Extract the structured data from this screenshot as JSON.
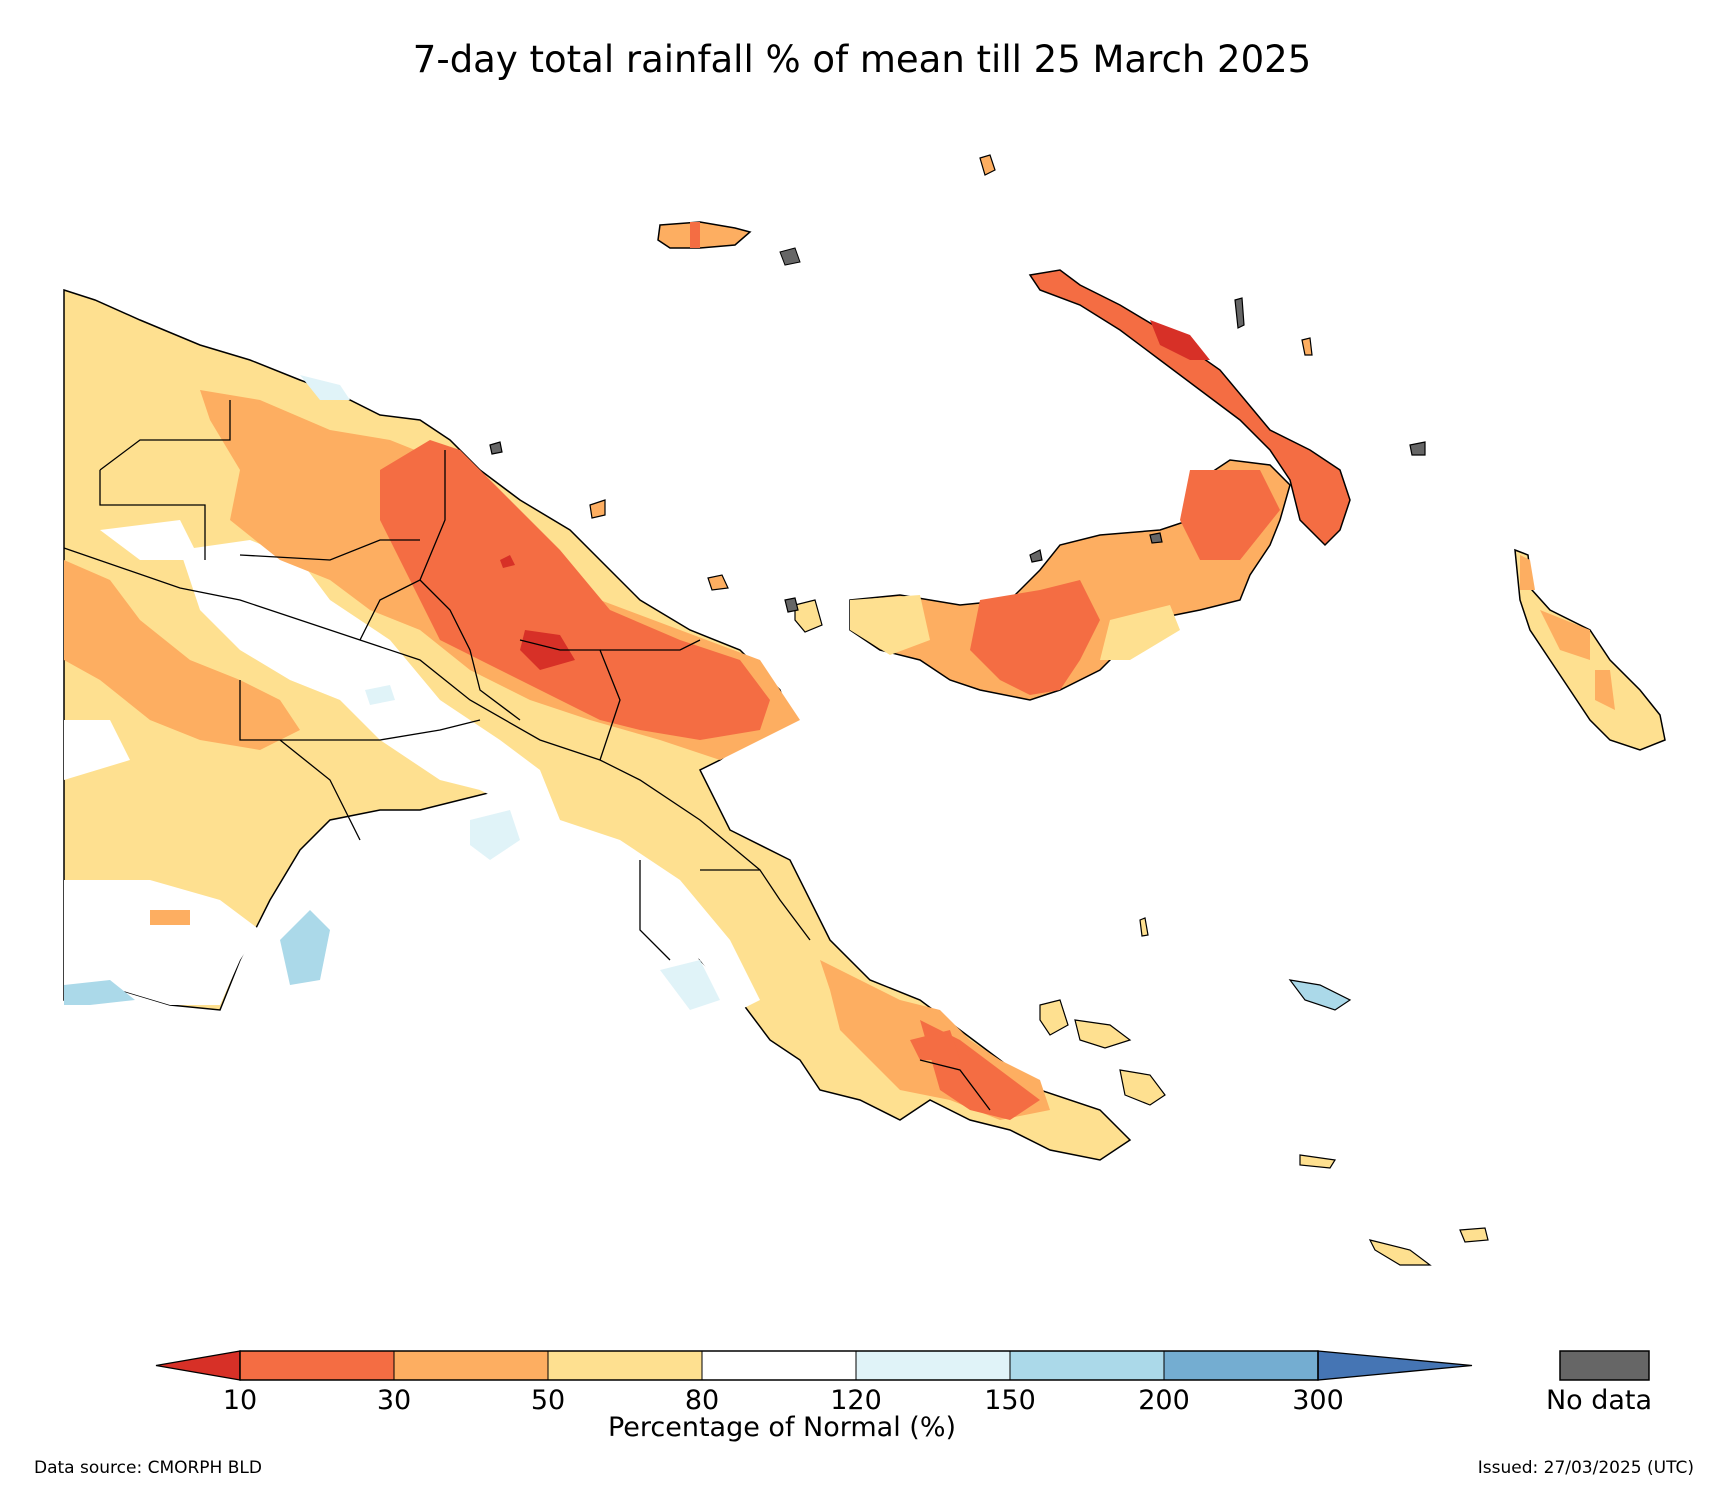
{
  "title": "7-day total rainfall % of mean till 25 March 2025",
  "colorbar": {
    "ticks": [
      "10",
      "30",
      "50",
      "80",
      "120",
      "150",
      "200",
      "300"
    ],
    "colors": [
      "#d73027",
      "#f46d43",
      "#fdae61",
      "#fee090",
      "#ffffff",
      "#e0f3f8",
      "#abd9e9",
      "#74add1",
      "#4575b4"
    ],
    "title": "Percentage of Normal (%)",
    "no_data_label": "No data",
    "no_data_color": "#666666"
  },
  "footer": {
    "source": "Data source: CMORPH BLD",
    "issued": "Issued: 27/03/2025 (UTC)"
  }
}
